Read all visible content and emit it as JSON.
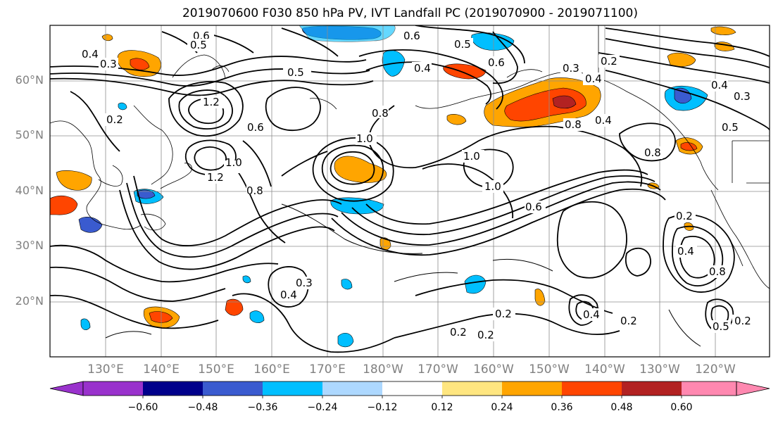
{
  "title": "2019070600 F030 850 hPa PV, IVT Landfall PC (2019070900 - 2019071100)",
  "lat_labels": [
    "60°N",
    "50°N",
    "40°N",
    "30°N",
    "20°N"
  ],
  "lon_labels": [
    "130°E",
    "140°E",
    "150°E",
    "160°E",
    "170°E",
    "180°W",
    "170°W",
    "160°W",
    "150°W",
    "140°W",
    "130°W",
    "120°W"
  ],
  "colorbar": {
    "ticks": [
      "−0.60",
      "−0.48",
      "−0.36",
      "−0.24",
      "−0.12",
      "0.12",
      "0.24",
      "0.36",
      "0.48",
      "0.60"
    ],
    "colors": [
      "#9932cc",
      "#00008b",
      "#3a5bcf",
      "#00bfff",
      "#add8ff",
      "#ffffff",
      "#ffe680",
      "#ffa500",
      "#ff4500",
      "#b22222",
      "#ff88b0"
    ]
  },
  "contour_labels": [
    "0.6",
    "0.5",
    "0.4",
    "0.3",
    "1.2",
    "0.2",
    "0.6",
    "1.2",
    "0.5",
    "0.8",
    "1.0",
    "1.0",
    "0.8",
    "0.6",
    "1.0",
    "1.0",
    "0.6",
    "0.4",
    "0.5",
    "0.6",
    "0.3",
    "0.2",
    "0.4",
    "0.8",
    "0.4",
    "0.8",
    "0.3",
    "0.5",
    "0.4",
    "0.2",
    "0.4",
    "0.8",
    "0.4",
    "0.3",
    "0.2",
    "0.2",
    "0.2",
    "0.4",
    "0.2",
    "0.5",
    "0.2"
  ]
}
